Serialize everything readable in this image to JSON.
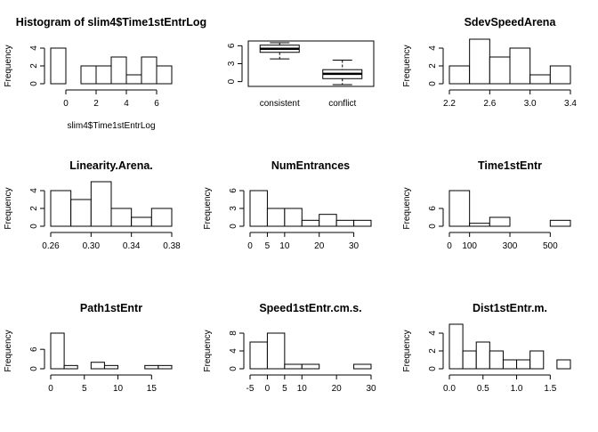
{
  "chart_data": [
    {
      "type": "bar",
      "title": "Histogram of slim4$Time1stEntrLog",
      "xlabel": "slim4$Time1stEntrLog",
      "ylabel": "Frequency",
      "breaks": [
        -1,
        0,
        1,
        2,
        3,
        4,
        5,
        6,
        7
      ],
      "values": [
        4,
        0,
        2,
        2,
        3,
        1,
        3,
        2
      ],
      "xlim": [
        -1,
        7
      ],
      "ylim": [
        0,
        4
      ],
      "xticks": [
        0,
        2,
        4,
        6
      ],
      "xtick_labels": [
        "0",
        "2",
        "4",
        "6"
      ],
      "yticks": [
        0,
        2,
        4
      ],
      "ytick_labels": [
        "0",
        "2",
        "4"
      ]
    },
    {
      "type": "box",
      "title": "",
      "xlabel": "",
      "ylabel": "",
      "categories": [
        "consistent",
        "conflict"
      ],
      "boxes": [
        {
          "min": 3.8,
          "q1": 4.9,
          "median": 5.5,
          "q3": 6.1,
          "max": 6.5
        },
        {
          "min": -0.5,
          "q1": 0.5,
          "median": 1.3,
          "q3": 2.0,
          "max": 3.6
        }
      ],
      "ylim": [
        -0.8,
        6.8
      ],
      "yticks": [
        0,
        3,
        6
      ],
      "ytick_labels": [
        "0",
        "3",
        "6"
      ]
    },
    {
      "type": "bar",
      "title": "SdevSpeedArena",
      "xlabel": "",
      "ylabel": "Frequency",
      "breaks": [
        2.2,
        2.4,
        2.6,
        2.8,
        3.0,
        3.2,
        3.4
      ],
      "values": [
        2,
        5,
        3,
        4,
        1,
        2
      ],
      "xlim": [
        2.2,
        3.4
      ],
      "ylim": [
        0,
        4
      ],
      "xticks": [
        2.2,
        2.6,
        3.0,
        3.4
      ],
      "xtick_labels": [
        "2.2",
        "2.6",
        "3.0",
        "3.4"
      ],
      "yticks": [
        0,
        2,
        4
      ],
      "ytick_labels": [
        "0",
        "2",
        "4"
      ]
    },
    {
      "type": "bar",
      "title": "Linearity.Arena.",
      "xlabel": "",
      "ylabel": "Frequency",
      "breaks": [
        0.26,
        0.28,
        0.3,
        0.32,
        0.34,
        0.36,
        0.38
      ],
      "values": [
        4,
        3,
        5,
        2,
        1,
        2
      ],
      "xlim": [
        0.26,
        0.38
      ],
      "ylim": [
        0,
        4
      ],
      "xticks": [
        0.26,
        0.3,
        0.34,
        0.38
      ],
      "xtick_labels": [
        "0.26",
        "0.30",
        "0.34",
        "0.38"
      ],
      "yticks": [
        0,
        2,
        4
      ],
      "ytick_labels": [
        "0",
        "2",
        "4"
      ]
    },
    {
      "type": "bar",
      "title": "NumEntrances",
      "xlabel": "",
      "ylabel": "Frequency",
      "breaks": [
        0,
        5,
        10,
        15,
        20,
        25,
        30,
        35
      ],
      "values": [
        6,
        3,
        3,
        1,
        2,
        1,
        1
      ],
      "xlim": [
        0,
        35
      ],
      "ylim": [
        0,
        6
      ],
      "xticks": [
        0,
        5,
        10,
        20,
        30
      ],
      "xtick_labels": [
        "0",
        "5",
        "10",
        "20",
        "30"
      ],
      "yticks": [
        0,
        3,
        6
      ],
      "ytick_labels": [
        "0",
        "3",
        "6"
      ]
    },
    {
      "type": "bar",
      "title": "Time1stEntr",
      "xlabel": "",
      "ylabel": "Frequency",
      "breaks": [
        0,
        100,
        200,
        300,
        400,
        500,
        600
      ],
      "values": [
        12,
        1,
        3,
        0,
        0,
        2
      ],
      "xlim": [
        0,
        600
      ],
      "ylim": [
        0,
        12
      ],
      "xticks": [
        0,
        100,
        300,
        500
      ],
      "xtick_labels": [
        "0",
        "100",
        "300",
        "500"
      ],
      "yticks": [
        0,
        6
      ],
      "ytick_labels": [
        "0",
        "6"
      ]
    },
    {
      "type": "bar",
      "title": "Path1stEntr",
      "xlabel": "",
      "ylabel": "Frequency",
      "breaks": [
        0,
        2,
        4,
        6,
        8,
        10,
        12,
        14,
        16,
        18
      ],
      "values": [
        11,
        1,
        0,
        2,
        1,
        0,
        0,
        1,
        1
      ],
      "xlim": [
        0,
        18
      ],
      "ylim": [
        0,
        11
      ],
      "xticks": [
        0,
        5,
        10,
        15
      ],
      "xtick_labels": [
        "0",
        "5",
        "10",
        "15"
      ],
      "yticks": [
        0,
        6
      ],
      "ytick_labels": [
        "0",
        "6"
      ]
    },
    {
      "type": "bar",
      "title": "Speed1stEntr.cm.s.",
      "xlabel": "",
      "ylabel": "Frequency",
      "breaks": [
        -5,
        0,
        5,
        10,
        15,
        20,
        25,
        30
      ],
      "values": [
        6,
        8,
        1,
        1,
        0,
        0,
        1
      ],
      "xlim": [
        -5,
        30
      ],
      "ylim": [
        0,
        8
      ],
      "xticks": [
        -5,
        0,
        5,
        10,
        20,
        30
      ],
      "xtick_labels": [
        "-5",
        "0",
        "5",
        "10",
        "20",
        "30"
      ],
      "yticks": [
        0,
        4,
        8
      ],
      "ytick_labels": [
        "0",
        "4",
        "8"
      ]
    },
    {
      "type": "bar",
      "title": "Dist1stEntr.m.",
      "xlabel": "",
      "ylabel": "Frequency",
      "breaks": [
        0,
        0.2,
        0.4,
        0.6,
        0.8,
        1.0,
        1.2,
        1.4,
        1.6,
        1.8
      ],
      "values": [
        5,
        2,
        3,
        2,
        1,
        1,
        2,
        0,
        1
      ],
      "xlim": [
        0,
        1.8
      ],
      "ylim": [
        0,
        4
      ],
      "xticks": [
        0,
        0.5,
        1.0,
        1.5
      ],
      "xtick_labels": [
        "0.0",
        "0.5",
        "1.0",
        "1.5"
      ],
      "yticks": [
        0,
        2,
        4
      ],
      "ytick_labels": [
        "0",
        "2",
        "4"
      ]
    }
  ]
}
